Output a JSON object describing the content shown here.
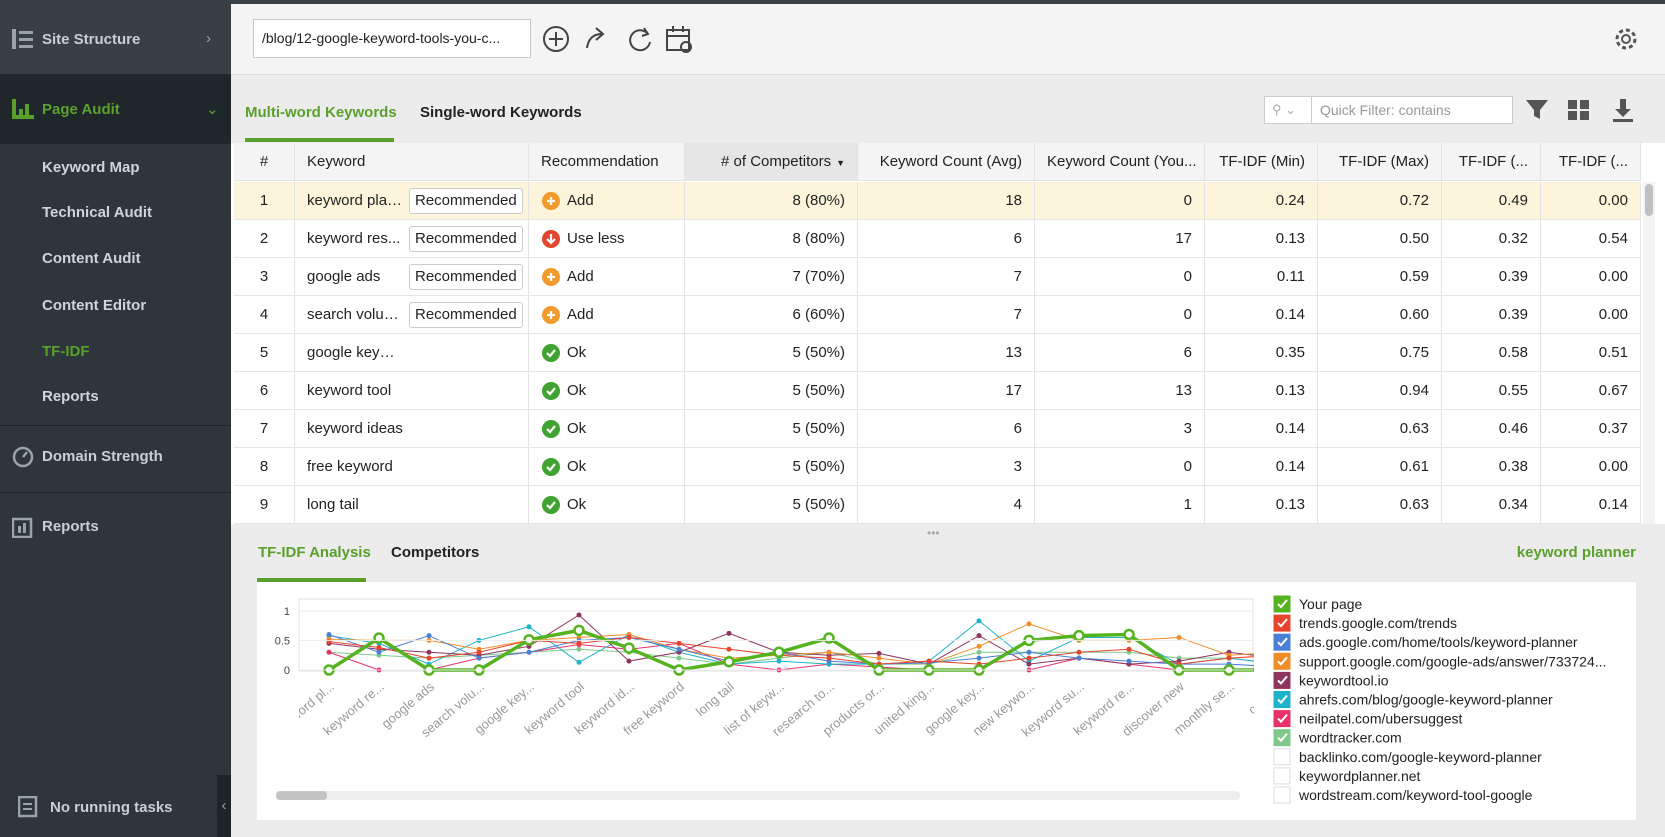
{
  "sidebar": {
    "sections": [
      {
        "label": "Site Structure"
      },
      {
        "label": "Page Audit",
        "items": [
          "Keyword Map",
          "Technical Audit",
          "Content Audit",
          "Content Editor",
          "TF-IDF",
          "Reports"
        ]
      },
      {
        "label": "Domain Strength"
      },
      {
        "label": "Reports"
      }
    ],
    "footer": "No running tasks"
  },
  "toolbar": {
    "url": "/blog/12-google-keyword-tools-you-c..."
  },
  "tabs": [
    "Multi-word Keywords",
    "Single-word Keywords"
  ],
  "quick_filter": "Quick Filter: contains",
  "table": {
    "columns": [
      "#",
      "Keyword",
      "Recommendation",
      "# of Competitors",
      "Keyword Count (Avg)",
      "Keyword Count (You...",
      "TF-IDF (Min)",
      "TF-IDF (Max)",
      "TF-IDF (...",
      "TF-IDF (..."
    ],
    "rows": [
      {
        "n": "1",
        "keyword": "keyword plan...",
        "badge": "Recommended",
        "recommendation": "Add",
        "icon": "plus",
        "values": [
          "8 (80%)",
          "18",
          "0",
          "0.24",
          "0.72",
          "0.49",
          "0.00"
        ]
      },
      {
        "n": "2",
        "keyword": "keyword res...",
        "badge": "Recommended",
        "recommendation": "Use less",
        "icon": "down",
        "values": [
          "8 (80%)",
          "6",
          "17",
          "0.13",
          "0.50",
          "0.32",
          "0.54"
        ]
      },
      {
        "n": "3",
        "keyword": "google ads",
        "badge": "Recommended",
        "recommendation": "Add",
        "icon": "plus",
        "values": [
          "7 (70%)",
          "7",
          "0",
          "0.11",
          "0.59",
          "0.39",
          "0.00"
        ]
      },
      {
        "n": "4",
        "keyword": "search volume",
        "badge": "Recommended",
        "recommendation": "Add",
        "icon": "plus",
        "values": [
          "6 (60%)",
          "7",
          "0",
          "0.14",
          "0.60",
          "0.39",
          "0.00"
        ]
      },
      {
        "n": "5",
        "keyword": "google keyword",
        "recommendation": "Ok",
        "icon": "check",
        "values": [
          "5 (50%)",
          "13",
          "6",
          "0.35",
          "0.75",
          "0.58",
          "0.51"
        ]
      },
      {
        "n": "6",
        "keyword": "keyword tool",
        "recommendation": "Ok",
        "icon": "check",
        "values": [
          "5 (50%)",
          "17",
          "13",
          "0.13",
          "0.94",
          "0.55",
          "0.67"
        ]
      },
      {
        "n": "7",
        "keyword": "keyword ideas",
        "recommendation": "Ok",
        "icon": "check",
        "values": [
          "5 (50%)",
          "6",
          "3",
          "0.14",
          "0.63",
          "0.46",
          "0.37"
        ]
      },
      {
        "n": "8",
        "keyword": "free keyword",
        "recommendation": "Ok",
        "icon": "check",
        "values": [
          "5 (50%)",
          "3",
          "0",
          "0.14",
          "0.61",
          "0.38",
          "0.00"
        ]
      },
      {
        "n": "9",
        "keyword": "long tail",
        "recommendation": "Ok",
        "icon": "check",
        "values": [
          "5 (50%)",
          "4",
          "1",
          "0.13",
          "0.63",
          "0.34",
          "0.14"
        ]
      }
    ]
  },
  "bottom_tabs": [
    "TF-IDF Analysis",
    "Competitors"
  ],
  "selected_keyword": "keyword planner",
  "chart_data": {
    "type": "line",
    "categories": [
      "keyword pl...",
      "keyword re...",
      "google ads",
      "search volu...",
      "google key...",
      "keyword tool",
      "keyword id...",
      "free keyword",
      "long tail",
      "list of keyw...",
      "research to...",
      "products or...",
      "united king...",
      "google key...",
      "new keywo...",
      "keyword su...",
      "keyword re...",
      "discover new",
      "monthly se...",
      "cost pe"
    ],
    "ylim": [
      0,
      1.2
    ],
    "yticks": [
      0,
      0.5,
      1
    ],
    "series": [
      {
        "name": "Your page",
        "color": "#55b31f",
        "checked": true,
        "values": [
          0,
          0.54,
          0,
          0,
          0.51,
          0.67,
          0.37,
          0,
          0.14,
          0.3,
          0.54,
          0,
          0,
          0,
          0.5,
          0.58,
          0.6,
          0,
          0,
          0
        ]
      },
      {
        "name": "trends.google.com/trends",
        "color": "#e8432b",
        "checked": true,
        "values": [
          0.48,
          0.38,
          0.2,
          0.3,
          0.5,
          0.45,
          0.55,
          0.45,
          0.35,
          0.25,
          0.2,
          0.1,
          0.15,
          0.1,
          0.2,
          0.3,
          0.35,
          0.1,
          0.2,
          0.25
        ]
      },
      {
        "name": "ads.google.com/home/tools/keyword-planner",
        "color": "#4a7fd6",
        "checked": true,
        "values": [
          0.6,
          0.3,
          0.58,
          0.2,
          0.3,
          0.5,
          0.55,
          0.35,
          0.15,
          0.3,
          0.15,
          0.1,
          0.12,
          0.2,
          0.3,
          0.2,
          0.15,
          0.1,
          0.1,
          0.05
        ]
      },
      {
        "name": "support.google.com/google-ads/answer/733724...",
        "color": "#f28c28",
        "checked": true,
        "values": [
          0.52,
          0.5,
          0.5,
          0.35,
          0.5,
          0.55,
          0.6,
          0.35,
          0.2,
          0.25,
          0.3,
          0.2,
          0.1,
          0.4,
          0.78,
          0.5,
          0.5,
          0.55,
          0.25,
          0.3
        ]
      },
      {
        "name": "keywordtool.io",
        "color": "#8e3560",
        "checked": true,
        "values": [
          0.45,
          0.35,
          0.3,
          0.25,
          0.4,
          0.93,
          0.15,
          0.3,
          0.62,
          0.3,
          0.25,
          0.28,
          0.1,
          0.58,
          0.1,
          0.2,
          0.1,
          0.15,
          0.3,
          0.2
        ]
      },
      {
        "name": "ahrefs.com/blog/google-keyword-planner",
        "color": "#1fb3c9",
        "checked": true,
        "values": [
          0.58,
          0.45,
          0.1,
          0.5,
          0.73,
          0.13,
          0.6,
          0.3,
          0.1,
          0.15,
          0.1,
          0.1,
          0.15,
          0.83,
          0.15,
          0.55,
          0.55,
          0.1,
          0.2,
          0.1
        ]
      },
      {
        "name": "neilpatel.com/ubersuggest",
        "color": "#e8326a",
        "checked": true,
        "values": [
          0.3,
          0,
          0,
          0.2,
          0.3,
          0.43,
          0.35,
          0.45,
          0.1,
          0,
          0.1,
          0.05,
          0,
          0,
          0,
          0.2,
          0.1,
          0,
          0,
          0
        ]
      },
      {
        "name": "wordtracker.com",
        "color": "#7fc98a",
        "checked": true,
        "values": [
          0.3,
          0.25,
          0.2,
          0.25,
          0.3,
          0.35,
          0.3,
          0.2,
          0.1,
          0.2,
          0.3,
          0.1,
          0.1,
          0.3,
          0.3,
          0.3,
          0.3,
          0.2,
          0.2,
          0.1
        ]
      },
      {
        "name": "backlinko.com/google-keyword-planner",
        "checked": false
      },
      {
        "name": "keywordplanner.net",
        "checked": false
      },
      {
        "name": "wordstream.com/keyword-tool-google",
        "checked": false
      }
    ]
  }
}
